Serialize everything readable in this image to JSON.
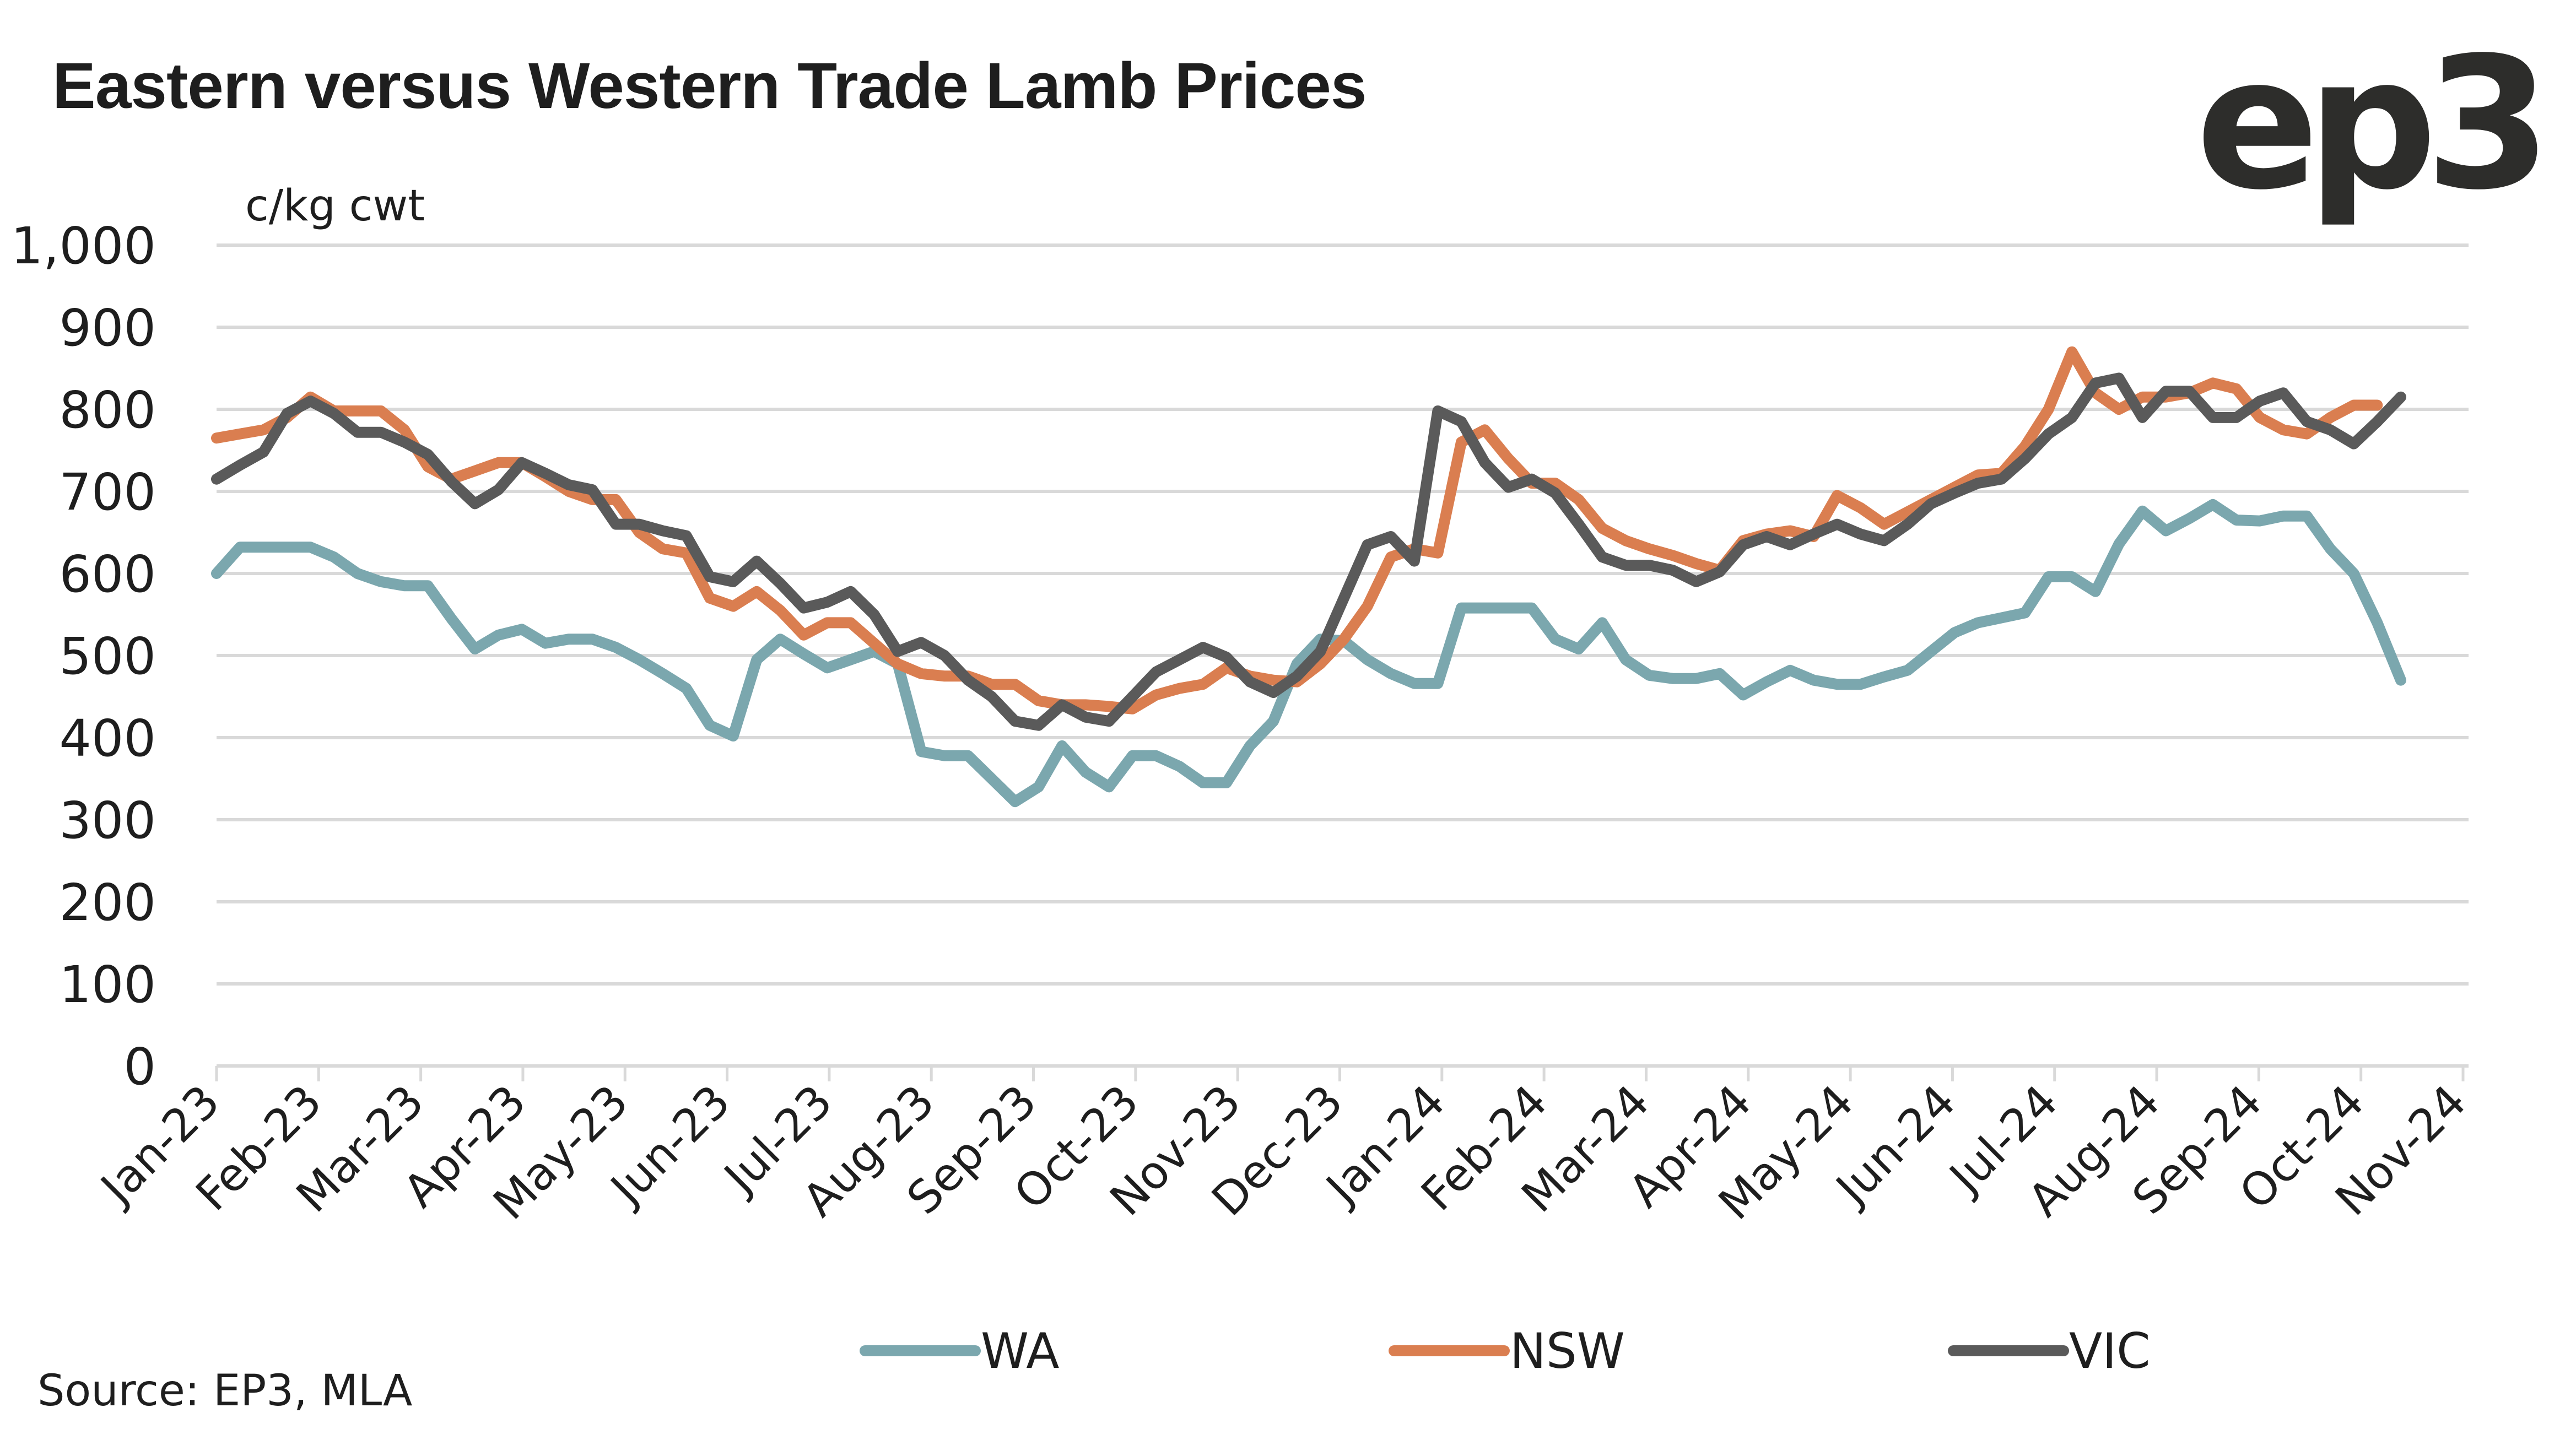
{
  "header": {
    "title": "Eastern versus Western Trade Lamb Prices",
    "logo_text": "ep3"
  },
  "footer": {
    "source": "Source: EP3, MLA"
  },
  "chart_data": {
    "type": "line",
    "title": "Eastern versus Western Trade Lamb Prices",
    "xlabel": "",
    "ylabel": "c/kg cwt",
    "unit_label": "c/kg cwt",
    "ylim": [
      0,
      1000
    ],
    "yticks": [
      0,
      100,
      200,
      300,
      400,
      500,
      600,
      700,
      800,
      900,
      1000
    ],
    "ytick_labels": [
      "0",
      "100",
      "200",
      "300",
      "400",
      "500",
      "600",
      "700",
      "800",
      "900",
      "1,000"
    ],
    "xtick_labels": [
      "Jan-23",
      "Feb-23",
      "Mar-23",
      "Apr-23",
      "May-23",
      "Jun-23",
      "Jul-23",
      "Aug-23",
      "Sep-23",
      "Oct-23",
      "Nov-23",
      "Dec-23",
      "Jan-24",
      "Feb-24",
      "Mar-24",
      "Apr-24",
      "May-24",
      "Jun-24",
      "Jul-24",
      "Aug-24",
      "Sep-24",
      "Oct-24",
      "Nov-24"
    ],
    "x_unit": "weeks since Jan-23",
    "x_range_months": [
      0,
      22
    ],
    "grid": true,
    "legend_position": "bottom",
    "colors": {
      "WA": "#7ba7ae",
      "NSW": "#da7e50",
      "VIC": "#5a5a5a"
    },
    "series": [
      {
        "name": "WA",
        "values": [
          600,
          632,
          632,
          632,
          632,
          620,
          600,
          590,
          585,
          585,
          545,
          508,
          525,
          532,
          515,
          520,
          520,
          510,
          495,
          478,
          460,
          415,
          402,
          495,
          520,
          502,
          485,
          495,
          505,
          490,
          383,
          378,
          378,
          350,
          322,
          340,
          390,
          358,
          340,
          378,
          378,
          365,
          345,
          345,
          390,
          420,
          490,
          520,
          518,
          495,
          478,
          466,
          466,
          558,
          558,
          558,
          558,
          520,
          508,
          540,
          495,
          476,
          472,
          472,
          478,
          452,
          468,
          482,
          470,
          465,
          465,
          474,
          482,
          505,
          528,
          540,
          546,
          552,
          596,
          596,
          578,
          636,
          676,
          652,
          667,
          684,
          665,
          664,
          670,
          670,
          630,
          600,
          540,
          470
        ],
        "months": [
          0.0,
          0.23,
          0.46,
          0.69,
          0.92,
          1.15,
          1.38,
          1.61,
          1.84,
          2.07,
          2.3,
          2.53,
          2.76,
          2.99,
          3.22,
          3.45,
          3.68,
          3.91,
          4.14,
          4.37,
          4.6,
          4.83,
          5.06,
          5.29,
          5.52,
          5.75,
          5.98,
          6.21,
          6.44,
          6.67,
          6.9,
          7.13,
          7.36,
          7.59,
          7.82,
          8.05,
          8.28,
          8.51,
          8.74,
          8.97,
          9.2,
          9.43,
          9.66,
          9.89,
          10.12,
          10.35,
          10.58,
          10.81,
          11.04,
          11.27,
          11.5,
          11.73,
          11.96,
          12.19,
          12.42,
          12.65,
          12.88,
          13.11,
          13.34,
          13.57,
          13.8,
          14.03,
          14.26,
          14.49,
          14.72,
          14.95,
          15.18,
          15.41,
          15.64,
          15.87,
          16.1,
          16.33,
          16.56,
          16.79,
          17.02,
          17.25,
          17.48,
          17.71,
          17.94,
          18.17,
          18.4,
          18.63,
          18.86,
          19.09,
          19.32,
          19.55,
          19.78,
          20.01,
          20.24,
          20.47,
          20.7,
          20.93,
          21.16,
          21.39
        ]
      },
      {
        "name": "NSW",
        "values": [
          765,
          770,
          775,
          790,
          815,
          798,
          798,
          798,
          775,
          730,
          715,
          725,
          735,
          735,
          718,
          700,
          690,
          690,
          650,
          630,
          625,
          570,
          560,
          578,
          555,
          525,
          540,
          540,
          515,
          490,
          478,
          475,
          475,
          465,
          465,
          445,
          440,
          440,
          438,
          435,
          452,
          460,
          465,
          485,
          475,
          470,
          468,
          490,
          520,
          560,
          620,
          630,
          625,
          760,
          775,
          740,
          710,
          710,
          690,
          655,
          640,
          630,
          622,
          612,
          604,
          640,
          648,
          652,
          645,
          695,
          680,
          660,
          675,
          690,
          705,
          720,
          722,
          755,
          800,
          870,
          820,
          800,
          815,
          815,
          820,
          832,
          825,
          790,
          775,
          770,
          790,
          805,
          805
        ],
        "months": [
          0.0,
          0.23,
          0.46,
          0.69,
          0.92,
          1.15,
          1.38,
          1.61,
          1.84,
          2.07,
          2.3,
          2.53,
          2.76,
          2.99,
          3.22,
          3.45,
          3.68,
          3.91,
          4.14,
          4.37,
          4.6,
          4.83,
          5.06,
          5.29,
          5.52,
          5.75,
          5.98,
          6.21,
          6.44,
          6.67,
          6.9,
          7.13,
          7.36,
          7.59,
          7.82,
          8.05,
          8.28,
          8.51,
          8.74,
          8.97,
          9.2,
          9.43,
          9.66,
          9.89,
          10.12,
          10.35,
          10.58,
          10.81,
          11.04,
          11.27,
          11.5,
          11.73,
          11.96,
          12.19,
          12.42,
          12.65,
          12.88,
          13.11,
          13.34,
          13.57,
          13.8,
          14.03,
          14.26,
          14.49,
          14.72,
          14.95,
          15.18,
          15.41,
          15.64,
          15.87,
          16.1,
          16.33,
          16.56,
          16.79,
          17.02,
          17.25,
          17.48,
          17.71,
          17.94,
          18.17,
          18.4,
          18.63,
          18.86,
          19.09,
          19.32,
          19.55,
          19.78,
          20.01,
          20.24,
          20.47,
          20.7,
          20.93,
          21.16
        ]
      },
      {
        "name": "VIC",
        "values": [
          715,
          732,
          748,
          795,
          810,
          795,
          772,
          772,
          760,
          745,
          712,
          685,
          702,
          735,
          722,
          708,
          702,
          660,
          660,
          652,
          646,
          596,
          590,
          615,
          588,
          558,
          565,
          578,
          550,
          505,
          516,
          500,
          470,
          450,
          420,
          415,
          440,
          425,
          420,
          450,
          480,
          495,
          510,
          498,
          468,
          455,
          475,
          505,
          570,
          635,
          645,
          615,
          798,
          785,
          735,
          705,
          715,
          698,
          660,
          620,
          610,
          610,
          604,
          590,
          602,
          635,
          645,
          635,
          648,
          660,
          648,
          640,
          660,
          685,
          698,
          710,
          715,
          740,
          770,
          790,
          832,
          838,
          790,
          822,
          822,
          790,
          790,
          810,
          820,
          785,
          775,
          758,
          785,
          815
        ],
        "months": [
          0.0,
          0.23,
          0.46,
          0.69,
          0.92,
          1.15,
          1.38,
          1.61,
          1.84,
          2.07,
          2.3,
          2.53,
          2.76,
          2.99,
          3.22,
          3.45,
          3.68,
          3.91,
          4.14,
          4.37,
          4.6,
          4.83,
          5.06,
          5.29,
          5.52,
          5.75,
          5.98,
          6.21,
          6.44,
          6.67,
          6.9,
          7.13,
          7.36,
          7.59,
          7.82,
          8.05,
          8.28,
          8.51,
          8.74,
          8.97,
          9.2,
          9.43,
          9.66,
          9.89,
          10.12,
          10.35,
          10.58,
          10.81,
          11.04,
          11.27,
          11.5,
          11.73,
          11.96,
          12.19,
          12.42,
          12.65,
          12.88,
          13.11,
          13.34,
          13.57,
          13.8,
          14.03,
          14.26,
          14.49,
          14.72,
          14.95,
          15.18,
          15.41,
          15.64,
          15.87,
          16.1,
          16.33,
          16.56,
          16.79,
          17.02,
          17.25,
          17.48,
          17.71,
          17.94,
          18.17,
          18.4,
          18.63,
          18.86,
          19.09,
          19.32,
          19.55,
          19.78,
          20.01,
          20.24,
          20.47,
          20.7,
          20.93,
          21.16,
          21.39
        ]
      }
    ]
  }
}
